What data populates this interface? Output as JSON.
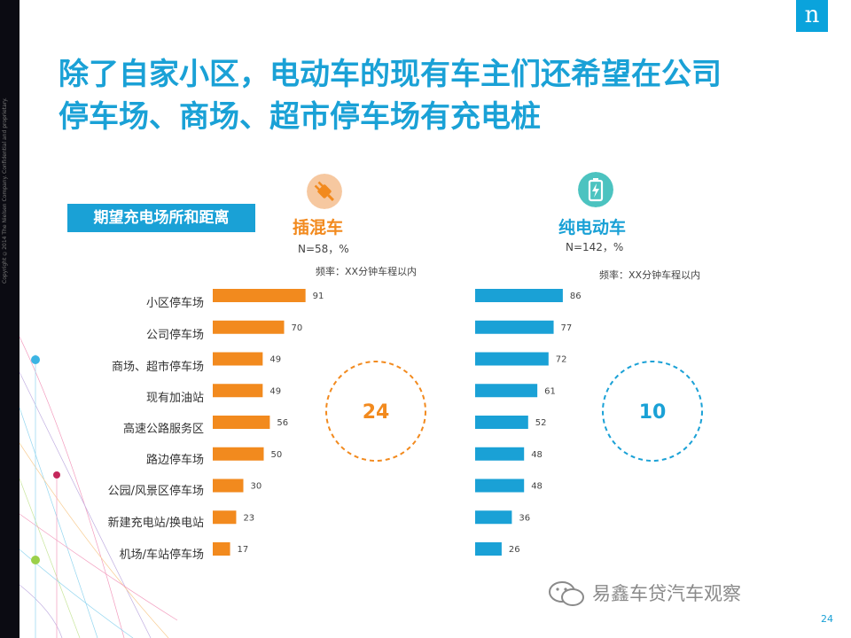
{
  "page": {
    "logo": "n",
    "copyright": "Copyright ©2014 The Nielsen Company. Confidential and proprietary.",
    "title_line1": "除了自家小区，电动车的现有车主们还希望在公司",
    "title_line2": "停车场、商场、超市停车场有充电桩",
    "section_label": "期望充电场所和距离",
    "watermark": "易鑫车贷汽车观察",
    "page_number": "24"
  },
  "chart_data": {
    "type": "bar",
    "categories": [
      "小区停车场",
      "公司停车场",
      "商场、超市停车场",
      "现有加油站",
      "高速公路服务区",
      "路边停车场",
      "公园/风景区停车场",
      "新建充电站/换电站",
      "机场/车站停车场"
    ],
    "series": [
      {
        "name": "插混车",
        "sample": "N=58，%",
        "note": "频率：XX分钟车程以内",
        "values": [
          91,
          70,
          49,
          49,
          56,
          50,
          30,
          23,
          17
        ],
        "color": "#f28a1e",
        "icon": "plug-icon",
        "circle_value": "24"
      },
      {
        "name": "纯电动车",
        "sample": "N=142，%",
        "note": "频率：XX分钟车程以内",
        "values": [
          86,
          77,
          72,
          61,
          52,
          48,
          48,
          36,
          26
        ],
        "color": "#1aa1d6",
        "icon": "battery-icon",
        "circle_value": "10"
      }
    ]
  }
}
